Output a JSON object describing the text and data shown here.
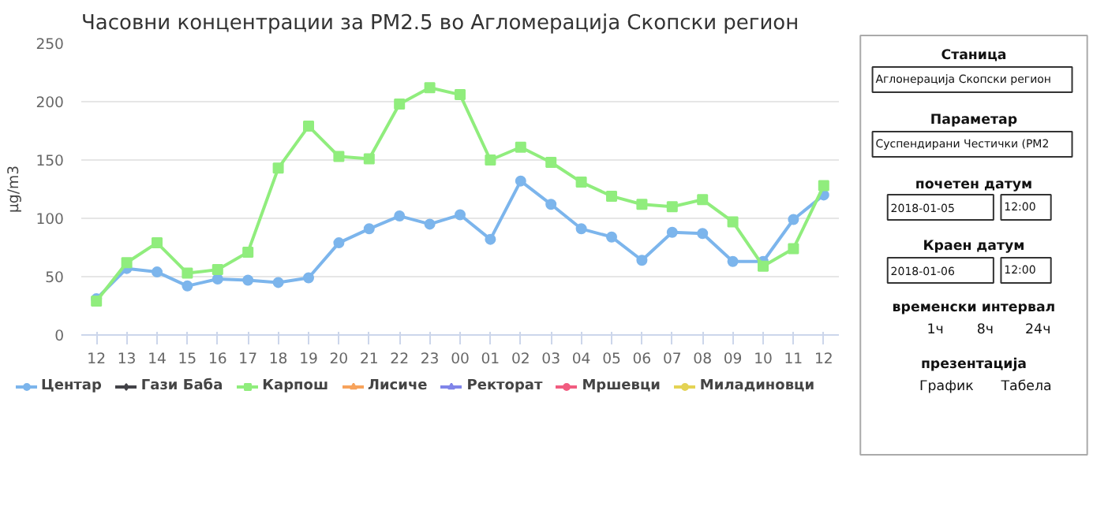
{
  "chart_data": [
    {
      "type": "line",
      "title": "Часовни концентрации за PM2.5 во Агломерација Скопски регион",
      "ylabel": "µg/m3",
      "categories": [
        "12",
        "13",
        "14",
        "15",
        "16",
        "17",
        "18",
        "19",
        "20",
        "21",
        "22",
        "23",
        "00",
        "01",
        "02",
        "03",
        "04",
        "05",
        "06",
        "07",
        "08",
        "09",
        "10",
        "11",
        "12"
      ],
      "series": [
        {
          "name": "Центар",
          "color": "#7cb5ec",
          "marker": "circle",
          "values": [
            31,
            57,
            54,
            42,
            48,
            47,
            45,
            49,
            79,
            91,
            102,
            95,
            103,
            82,
            132,
            112,
            91,
            84,
            64,
            88,
            87,
            63,
            63,
            99,
            120
          ]
        },
        {
          "name": "Гази Баба",
          "color": "#434348",
          "marker": "diamond",
          "values": [
            null,
            null,
            null,
            null,
            null,
            null,
            null,
            null,
            null,
            null,
            null,
            null,
            null,
            null,
            null,
            null,
            null,
            null,
            null,
            null,
            null,
            null,
            null,
            null,
            null
          ]
        },
        {
          "name": "Карпош",
          "color": "#90ed7d",
          "marker": "square",
          "values": [
            29,
            62,
            79,
            53,
            56,
            71,
            143,
            179,
            153,
            151,
            198,
            212,
            206,
            150,
            161,
            148,
            131,
            119,
            112,
            110,
            116,
            97,
            59,
            74,
            128
          ]
        },
        {
          "name": "Лисиче",
          "color": "#f7a35c",
          "marker": "triangle",
          "values": [
            null,
            null,
            null,
            null,
            null,
            null,
            null,
            null,
            null,
            null,
            null,
            null,
            null,
            null,
            null,
            null,
            null,
            null,
            null,
            null,
            null,
            null,
            null,
            null,
            null
          ]
        },
        {
          "name": "Ректорат",
          "color": "#8085e9",
          "marker": "triangle",
          "values": [
            null,
            null,
            null,
            null,
            null,
            null,
            null,
            null,
            null,
            null,
            null,
            null,
            null,
            null,
            null,
            null,
            null,
            null,
            null,
            null,
            null,
            null,
            null,
            null,
            null
          ]
        },
        {
          "name": "Мршевци",
          "color": "#f15c80",
          "marker": "circle",
          "values": [
            null,
            null,
            null,
            null,
            null,
            null,
            null,
            null,
            null,
            null,
            null,
            null,
            null,
            null,
            null,
            null,
            null,
            null,
            null,
            null,
            null,
            null,
            null,
            null,
            null
          ]
        },
        {
          "name": "Миладиновци",
          "color": "#e4d354",
          "marker": "circle",
          "values": [
            null,
            null,
            null,
            null,
            null,
            null,
            null,
            null,
            null,
            null,
            null,
            null,
            null,
            null,
            null,
            null,
            null,
            null,
            null,
            null,
            null,
            null,
            null,
            null,
            null
          ]
        }
      ],
      "ylim": [
        0,
        250
      ],
      "yticks": [
        0,
        50,
        100,
        150,
        200,
        250
      ],
      "grid": "y",
      "legend": "bottom"
    },
    {
      "type": "other",
      "annotations": [
        "Станица",
        "Аглонерација Скопски регион",
        "Параметар",
        "Суспендирани Честички (PM2",
        "почетен датум",
        "2018-01-05",
        "12:00",
        "Краен датум",
        "2018-01-06",
        "12:00",
        "временски интервал",
        "1ч",
        "8ч",
        "24ч",
        "презентација",
        "График",
        "Табела"
      ]
    }
  ]
}
